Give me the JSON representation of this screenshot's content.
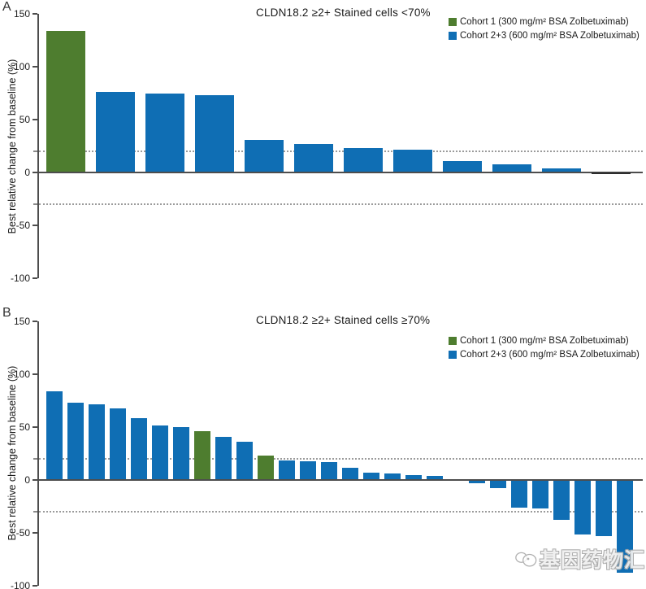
{
  "panels": [
    {
      "label": "A",
      "title": "CLDN18.2 ≥2+ Stained cells <70%",
      "ylabel": "Best relative change from baseline (%)"
    },
    {
      "label": "B",
      "title": "CLDN18.2 ≥2+ Stained cells ≥70%",
      "ylabel": "Best relative change from baseline (%)"
    }
  ],
  "legend": {
    "items": [
      {
        "key": "cohort1",
        "label": "Cohort 1 (300 mg/m² BSA Zolbetuximab)",
        "color": "#4e7d2f"
      },
      {
        "key": "cohort2",
        "label": "Cohort 2+3 (600 mg/m² BSA Zolbetuximab)",
        "color": "#0f6eb4"
      }
    ]
  },
  "watermark": {
    "text": "基因药物汇"
  },
  "chart_data": [
    {
      "type": "bar",
      "panel": "A",
      "title": "CLDN18.2 ≥2+ Stained cells <70%",
      "xlabel": "",
      "ylabel": "Best relative change from baseline (%)",
      "ylim": [
        -100,
        150
      ],
      "yticks": [
        150,
        100,
        50,
        0,
        -50,
        -100
      ],
      "reference_lines_y": [
        20,
        -30
      ],
      "grid": false,
      "legend_position": "top-right",
      "bars": [
        {
          "value": 133,
          "cohort": "cohort1"
        },
        {
          "value": 75,
          "cohort": "cohort2"
        },
        {
          "value": 74,
          "cohort": "cohort2"
        },
        {
          "value": 72,
          "cohort": "cohort2"
        },
        {
          "value": 30,
          "cohort": "cohort2"
        },
        {
          "value": 26,
          "cohort": "cohort2"
        },
        {
          "value": 22,
          "cohort": "cohort2"
        },
        {
          "value": 21,
          "cohort": "cohort2"
        },
        {
          "value": 10,
          "cohort": "cohort2"
        },
        {
          "value": 7,
          "cohort": "cohort2"
        },
        {
          "value": 3,
          "cohort": "cohort2"
        },
        {
          "value": -1,
          "cohort": "cohort2",
          "collapsed": true
        }
      ]
    },
    {
      "type": "bar",
      "panel": "B",
      "title": "CLDN18.2 ≥2+ Stained cells ≥70%",
      "xlabel": "",
      "ylabel": "Best relative change from baseline (%)",
      "ylim": [
        -100,
        150
      ],
      "yticks": [
        150,
        100,
        50,
        0,
        -50,
        -100
      ],
      "reference_lines_y": [
        20,
        -30
      ],
      "grid": false,
      "legend_position": "top-right",
      "bars": [
        {
          "value": 83,
          "cohort": "cohort2"
        },
        {
          "value": 72,
          "cohort": "cohort2"
        },
        {
          "value": 71,
          "cohort": "cohort2"
        },
        {
          "value": 67,
          "cohort": "cohort2"
        },
        {
          "value": 58,
          "cohort": "cohort2"
        },
        {
          "value": 51,
          "cohort": "cohort2"
        },
        {
          "value": 49,
          "cohort": "cohort2"
        },
        {
          "value": 45,
          "cohort": "cohort1"
        },
        {
          "value": 40,
          "cohort": "cohort2"
        },
        {
          "value": 35,
          "cohort": "cohort2"
        },
        {
          "value": 22,
          "cohort": "cohort1"
        },
        {
          "value": 18,
          "cohort": "cohort2"
        },
        {
          "value": 17,
          "cohort": "cohort2"
        },
        {
          "value": 16,
          "cohort": "cohort2"
        },
        {
          "value": 11,
          "cohort": "cohort2"
        },
        {
          "value": 6,
          "cohort": "cohort2"
        },
        {
          "value": 5,
          "cohort": "cohort2"
        },
        {
          "value": 4,
          "cohort": "cohort2"
        },
        {
          "value": 3,
          "cohort": "cohort2"
        },
        {
          "value": 0,
          "cohort": "cohort2"
        },
        {
          "value": -2,
          "cohort": "cohort2"
        },
        {
          "value": -7,
          "cohort": "cohort2"
        },
        {
          "value": -25,
          "cohort": "cohort2"
        },
        {
          "value": -26,
          "cohort": "cohort2"
        },
        {
          "value": -37,
          "cohort": "cohort2"
        },
        {
          "value": -51,
          "cohort": "cohort2"
        },
        {
          "value": -52,
          "cohort": "cohort2"
        },
        {
          "value": -87,
          "cohort": "cohort2"
        }
      ]
    }
  ]
}
